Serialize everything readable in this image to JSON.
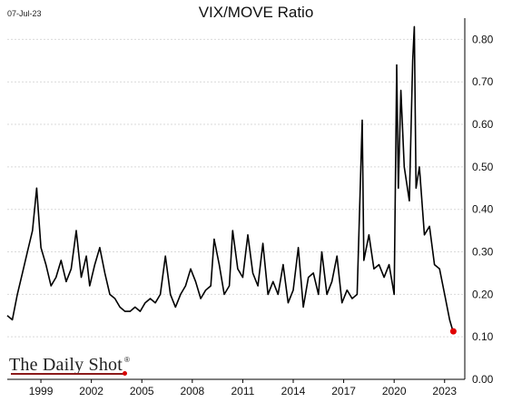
{
  "header": {
    "date": "07-Jul-23",
    "title": "VIX/MOVE Ratio"
  },
  "logo": {
    "text": "The Daily Shot",
    "mark": "®"
  },
  "colors": {
    "line": "#000000",
    "grid": "#d9d9d9",
    "last_point": "#e00000",
    "logo_accent": "#8b1a1a"
  },
  "chart_data": {
    "type": "line",
    "title": "VIX/MOVE Ratio",
    "xlabel": "",
    "ylabel": "",
    "x_ticks": [
      "1999",
      "2002",
      "2005",
      "2008",
      "2011",
      "2014",
      "2017",
      "2020",
      "2023"
    ],
    "y_ticks": [
      "0.00",
      "0.10",
      "0.20",
      "0.30",
      "0.40",
      "0.50",
      "0.60",
      "0.70",
      "0.80"
    ],
    "xlim": [
      1997.0,
      2024.2
    ],
    "ylim": [
      0.0,
      0.85
    ],
    "y_axis_side": "right",
    "grid": true,
    "series": [
      {
        "name": "",
        "x": [
          1997.0,
          1997.3,
          1997.6,
          1997.9,
          1998.2,
          1998.5,
          1998.75,
          1999.0,
          1999.3,
          1999.6,
          1999.9,
          2000.2,
          2000.5,
          2000.8,
          2001.1,
          2001.4,
          2001.7,
          2001.9,
          2002.2,
          2002.5,
          2002.8,
          2003.1,
          2003.4,
          2003.7,
          2004.0,
          2004.3,
          2004.6,
          2004.9,
          2005.2,
          2005.5,
          2005.8,
          2006.1,
          2006.4,
          2006.7,
          2007.0,
          2007.3,
          2007.6,
          2007.9,
          2008.2,
          2008.5,
          2008.8,
          2009.1,
          2009.3,
          2009.6,
          2009.9,
          2010.2,
          2010.4,
          2010.7,
          2011.0,
          2011.3,
          2011.6,
          2011.9,
          2012.2,
          2012.5,
          2012.8,
          2013.1,
          2013.4,
          2013.7,
          2014.0,
          2014.3,
          2014.6,
          2014.9,
          2015.2,
          2015.5,
          2015.7,
          2016.0,
          2016.3,
          2016.6,
          2016.9,
          2017.2,
          2017.5,
          2017.8,
          2018.1,
          2018.2,
          2018.5,
          2018.8,
          2019.1,
          2019.4,
          2019.7,
          2020.0,
          2020.15,
          2020.25,
          2020.4,
          2020.6,
          2020.9,
          2021.1,
          2021.2,
          2021.3,
          2021.5,
          2021.8,
          2022.1,
          2022.4,
          2022.7,
          2023.0,
          2023.3,
          2023.52
        ],
        "y": [
          0.15,
          0.14,
          0.2,
          0.25,
          0.3,
          0.35,
          0.45,
          0.31,
          0.27,
          0.22,
          0.24,
          0.28,
          0.23,
          0.26,
          0.35,
          0.24,
          0.29,
          0.22,
          0.27,
          0.31,
          0.25,
          0.2,
          0.19,
          0.17,
          0.16,
          0.16,
          0.17,
          0.16,
          0.18,
          0.19,
          0.18,
          0.2,
          0.29,
          0.2,
          0.17,
          0.2,
          0.22,
          0.26,
          0.23,
          0.19,
          0.21,
          0.22,
          0.33,
          0.27,
          0.2,
          0.22,
          0.35,
          0.26,
          0.24,
          0.34,
          0.25,
          0.22,
          0.32,
          0.2,
          0.23,
          0.2,
          0.27,
          0.18,
          0.21,
          0.31,
          0.17,
          0.24,
          0.25,
          0.2,
          0.3,
          0.2,
          0.23,
          0.29,
          0.18,
          0.21,
          0.19,
          0.2,
          0.61,
          0.28,
          0.34,
          0.26,
          0.27,
          0.24,
          0.27,
          0.2,
          0.74,
          0.45,
          0.68,
          0.5,
          0.42,
          0.75,
          0.83,
          0.45,
          0.5,
          0.34,
          0.36,
          0.27,
          0.26,
          0.2,
          0.14,
          0.11
        ]
      }
    ],
    "last_value": 0.113
  }
}
